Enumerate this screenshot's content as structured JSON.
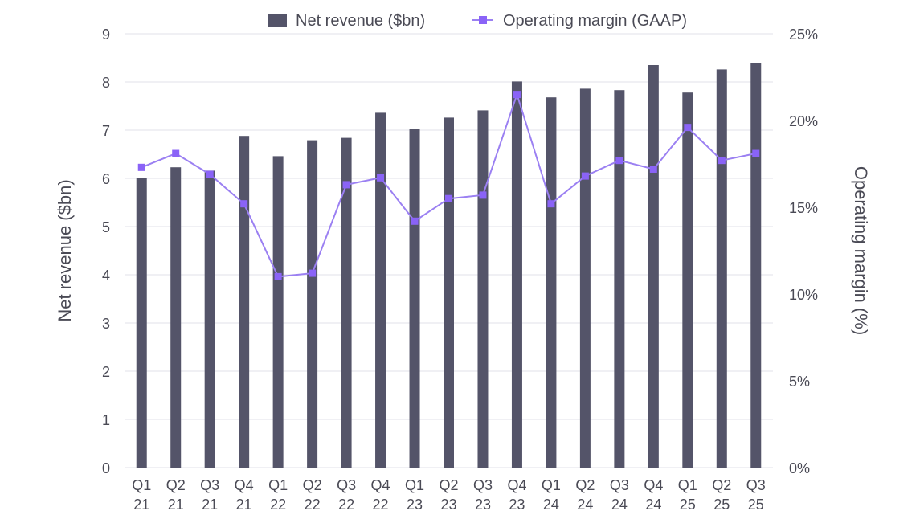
{
  "chart_data": {
    "type": "bar+line",
    "title": "",
    "categories": [
      [
        "Q1",
        "21"
      ],
      [
        "Q2",
        "21"
      ],
      [
        "Q3",
        "21"
      ],
      [
        "Q4",
        "21"
      ],
      [
        "Q1",
        "22"
      ],
      [
        "Q2",
        "22"
      ],
      [
        "Q3",
        "22"
      ],
      [
        "Q4",
        "22"
      ],
      [
        "Q1",
        "23"
      ],
      [
        "Q2",
        "23"
      ],
      [
        "Q3",
        "23"
      ],
      [
        "Q4",
        "23"
      ],
      [
        "Q1",
        "24"
      ],
      [
        "Q2",
        "24"
      ],
      [
        "Q3",
        "24"
      ],
      [
        "Q4",
        "24"
      ],
      [
        "Q1",
        "25"
      ],
      [
        "Q2",
        "25"
      ],
      [
        "Q3",
        "25"
      ]
    ],
    "series": [
      {
        "name": "Net revenue ($bn)",
        "type": "bar",
        "axis": "left",
        "color": "#545469",
        "values": [
          6.01,
          6.23,
          6.16,
          6.88,
          6.46,
          6.79,
          6.84,
          7.36,
          7.03,
          7.26,
          7.41,
          8.01,
          7.68,
          7.86,
          7.83,
          8.35,
          7.78,
          8.26,
          8.4
        ]
      },
      {
        "name": "Operating margin (GAAP)",
        "type": "line",
        "axis": "right",
        "color": "#9b80f2",
        "marker_color": "#8a63f7",
        "values": [
          17.3,
          18.1,
          16.9,
          15.2,
          11.0,
          11.2,
          16.3,
          16.7,
          14.2,
          15.5,
          15.7,
          21.5,
          15.2,
          16.8,
          17.7,
          17.2,
          19.6,
          17.7,
          18.1
        ]
      }
    ],
    "ylabel": "Net revenue ($bn)",
    "ylabel_right": "Operating margin (%)",
    "ylim": [
      0,
      9
    ],
    "yticks": [
      "0",
      "1",
      "2",
      "3",
      "4",
      "5",
      "6",
      "7",
      "8",
      "9"
    ],
    "ylim_right": [
      0,
      25
    ],
    "yticks_right": [
      "0%",
      "5%",
      "10%",
      "15%",
      "20%",
      "25%"
    ],
    "grid": true,
    "legend_position": "top-center"
  }
}
